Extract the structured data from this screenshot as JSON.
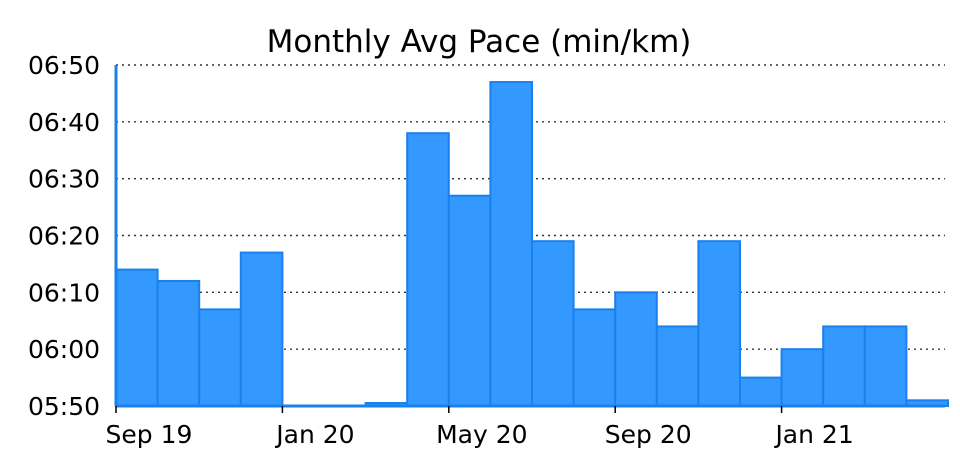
{
  "chart_data": {
    "type": "bar",
    "title": "Monthly Avg Pace (min/km)",
    "xlabel": "",
    "ylabel": "",
    "y_unit": "minutes per km",
    "ylim": [
      "05:50",
      "06:50"
    ],
    "y_ticks": [
      "05:50",
      "06:00",
      "06:10",
      "06:20",
      "06:30",
      "06:40",
      "06:50"
    ],
    "x_tick_labels": [
      {
        "label": "Sep 19",
        "month": "2019-09"
      },
      {
        "label": "Jan 20",
        "month": "2020-01"
      },
      {
        "label": "May 20",
        "month": "2020-05"
      },
      {
        "label": "Sep 20",
        "month": "2020-09"
      },
      {
        "label": "Jan 21",
        "month": "2021-01"
      }
    ],
    "categories": [
      "2019-09",
      "2019-10",
      "2019-11",
      "2019-12",
      "2020-01",
      "2020-02",
      "2020-03",
      "2020-04",
      "2020-05",
      "2020-06",
      "2020-07",
      "2020-08",
      "2020-09",
      "2020-10",
      "2020-11",
      "2020-12",
      "2021-01",
      "2021-02",
      "2021-03",
      "2021-04"
    ],
    "values": [
      "06:14",
      "06:12",
      "06:07",
      "06:17",
      null,
      null,
      "05:50",
      "06:38",
      "06:27",
      "06:47",
      "06:19",
      "06:07",
      "06:10",
      "06:04",
      "06:19",
      "05:55",
      "06:00",
      "06:04",
      "06:04",
      "05:51"
    ],
    "grid": true,
    "grid_style": "dotted horizontal",
    "legend": "none",
    "colors": {
      "bar_fill": "#3399ff",
      "bar_edge": "#1a80ee",
      "axis": "#1a80ee",
      "grid": "#333333"
    }
  }
}
